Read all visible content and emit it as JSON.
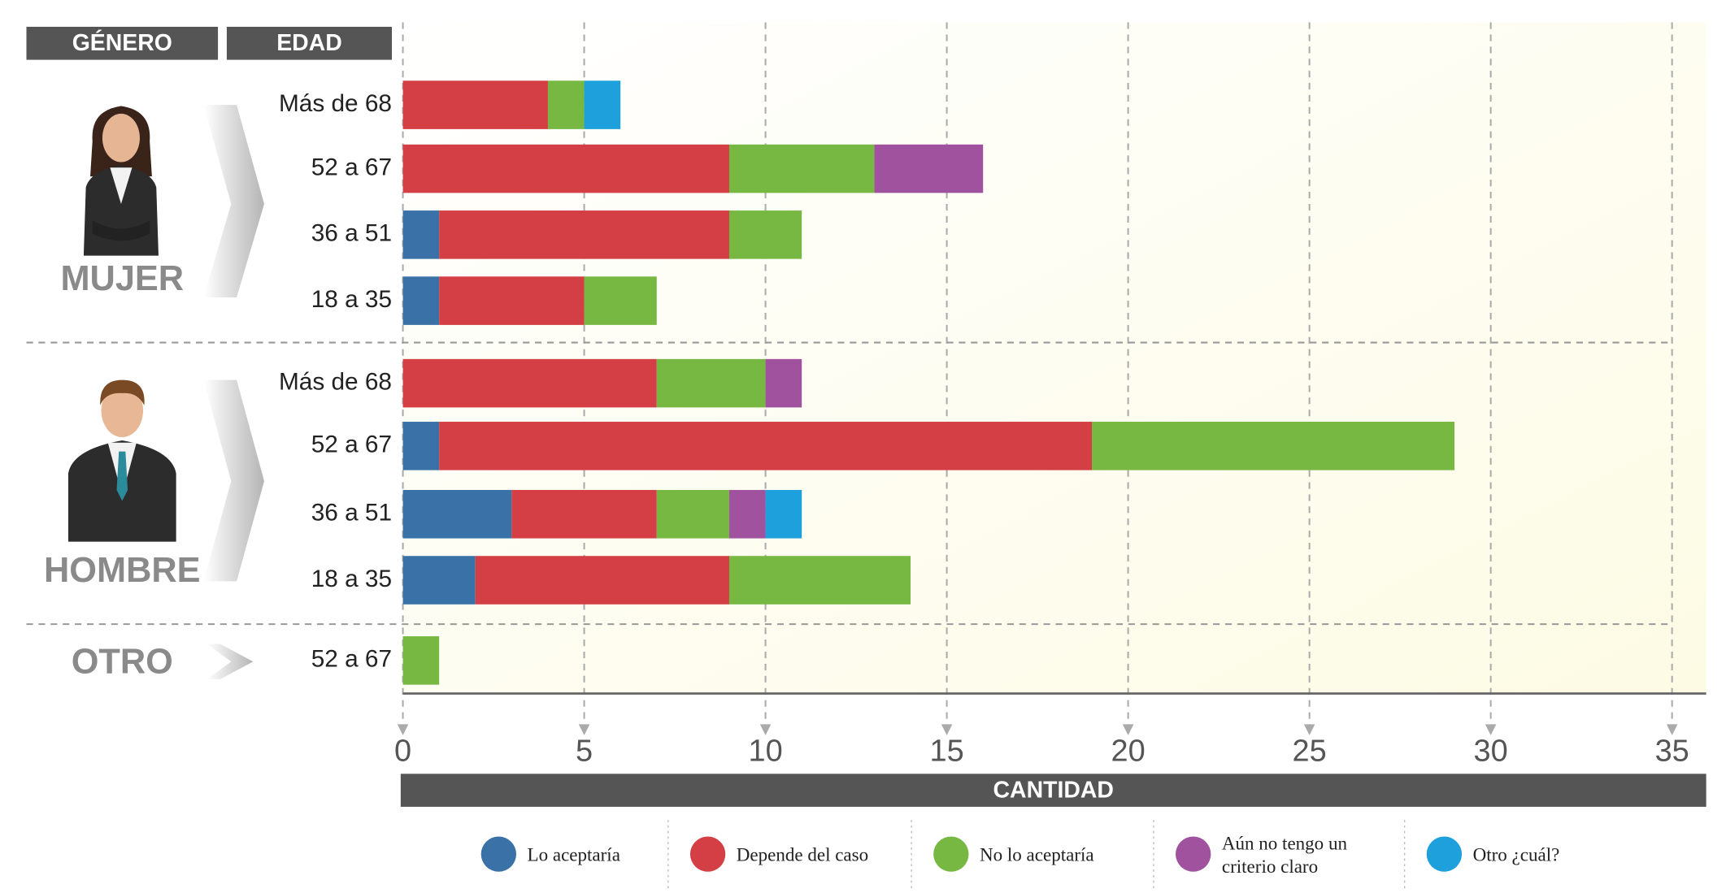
{
  "chart_data": {
    "type": "bar",
    "orientation": "horizontal",
    "stacked": true,
    "headers": [
      "GÉNERO",
      "EDAD"
    ],
    "groups": [
      {
        "label": "MUJER",
        "categories": [
          "Más de 68",
          "52 a 67",
          "36 a 51",
          "18 a 35"
        ]
      },
      {
        "label": "HOMBRE",
        "categories": [
          "Más de 68",
          "52 a 67",
          "36 a 51",
          "18 a 35"
        ]
      },
      {
        "label": "OTRO",
        "categories": [
          "52 a 67"
        ]
      }
    ],
    "series": [
      {
        "name": "Lo aceptaría",
        "color": "#3a72a8",
        "values": [
          0,
          0,
          1,
          1,
          0,
          1,
          3,
          2,
          0
        ]
      },
      {
        "name": "Depende del caso",
        "color": "#d33f44",
        "values": [
          4,
          9,
          8,
          4,
          7,
          18,
          4,
          7,
          0
        ]
      },
      {
        "name": "No lo aceptaría",
        "color": "#77b843",
        "values": [
          1,
          4,
          2,
          2,
          3,
          10,
          2,
          5,
          1
        ]
      },
      {
        "name": "Aún no tengo un criterio claro",
        "color": "#a0529e",
        "values": [
          0,
          3,
          0,
          0,
          1,
          0,
          1,
          0,
          0
        ]
      },
      {
        "name": "Otro ¿cuál?",
        "color": "#1ea0dc",
        "values": [
          1,
          0,
          0,
          0,
          0,
          0,
          1,
          0,
          0
        ]
      }
    ],
    "xlabel": "CANTIDAD",
    "xlim": [
      0,
      35
    ],
    "xticks": [
      0,
      5,
      10,
      15,
      20,
      25,
      30,
      35
    ],
    "grid": true,
    "legend": "bottom"
  }
}
